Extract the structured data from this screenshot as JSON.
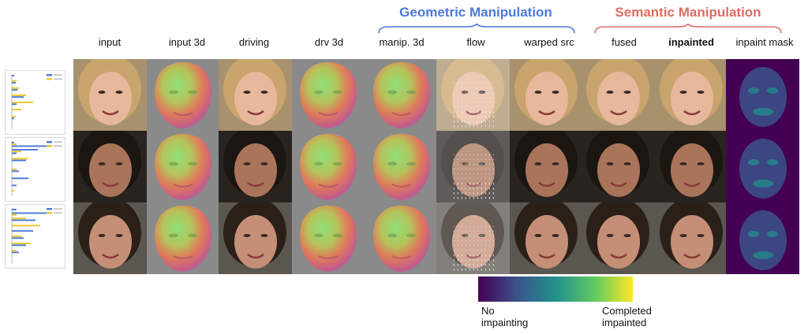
{
  "groups": {
    "geometric": "Geometric Manipulation",
    "semantic": "Semantic Manipulation"
  },
  "columns": [
    {
      "label": "input",
      "kind": "face"
    },
    {
      "label": "input 3d",
      "kind": "mesh"
    },
    {
      "label": "driving",
      "kind": "face"
    },
    {
      "label": "drv 3d",
      "kind": "mesh"
    },
    {
      "label": "manip. 3d",
      "kind": "mesh"
    },
    {
      "label": "flow",
      "kind": "flow"
    },
    {
      "label": "warped src",
      "kind": "face"
    },
    {
      "label": "fused",
      "kind": "face"
    },
    {
      "label": "inpainted",
      "kind": "face",
      "bold": true
    },
    {
      "label": "inpaint mask",
      "kind": "mask"
    }
  ],
  "rows": [
    {
      "subject": "blonde young woman, smiling",
      "skin": "#e7b89c",
      "hair": "#c9a46c",
      "bg": "#a8926e"
    },
    {
      "subject": "dark-haired man, mouth open",
      "skin": "#a9745a",
      "hair": "#1c1612",
      "bg": "#2a2420"
    },
    {
      "subject": "dark-haired man, eyes half closed",
      "skin": "#c48f76",
      "hair": "#2b2018",
      "bg": "#5a5650"
    }
  ],
  "colorbar": {
    "low_line1": "No",
    "low_line2": "impainting",
    "high_line1": "Completed",
    "high_line2": "impainted",
    "colormap": "viridis",
    "stops": [
      "#440154",
      "#3b528b",
      "#21918c",
      "#5ec962",
      "#fde725"
    ]
  },
  "side_charts": [
    {
      "type": "bar",
      "orientation": "horizontal",
      "series": [
        {
          "color": "#4a7bd8",
          "values": [
            0.05,
            0.0,
            0.08,
            0.0,
            0.12,
            0.0,
            0.25,
            0.0,
            0.1,
            0.0,
            0.0,
            0.0,
            0.05,
            0.0,
            0.0
          ]
        },
        {
          "color": "#e8c830",
          "values": [
            0.0,
            0.1,
            0.0,
            0.15,
            0.0,
            0.3,
            0.0,
            0.45,
            0.0,
            0.2,
            0.0,
            0.08,
            0.0,
            0.0,
            0.0
          ]
        }
      ]
    },
    {
      "type": "bar",
      "orientation": "horizontal",
      "series": [
        {
          "color": "#4a7bd8",
          "values": [
            0.05,
            0.8,
            0.55,
            0.1,
            0.0,
            0.3,
            0.0,
            0.0,
            0.15,
            0.0,
            0.35,
            0.0,
            0.1,
            0.0,
            0.0
          ]
        },
        {
          "color": "#e8c830",
          "values": [
            0.1,
            0.0,
            0.2,
            0.0,
            0.35,
            0.0,
            0.0,
            0.1,
            0.0,
            0.0,
            0.0,
            0.0,
            0.0,
            0.05,
            0.0
          ]
        }
      ]
    },
    {
      "type": "bar",
      "orientation": "horizontal",
      "series": [
        {
          "color": "#4a7bd8",
          "values": [
            0.1,
            0.8,
            0.0,
            0.5,
            0.0,
            0.0,
            0.45,
            0.0,
            0.25,
            0.0,
            0.3,
            0.0,
            0.15,
            0.0,
            0.0
          ]
        },
        {
          "color": "#e8c830",
          "values": [
            0.0,
            0.1,
            0.3,
            0.0,
            0.6,
            0.0,
            0.0,
            0.2,
            0.0,
            0.4,
            0.0,
            0.1,
            0.0,
            0.0,
            0.0
          ]
        }
      ]
    }
  ]
}
